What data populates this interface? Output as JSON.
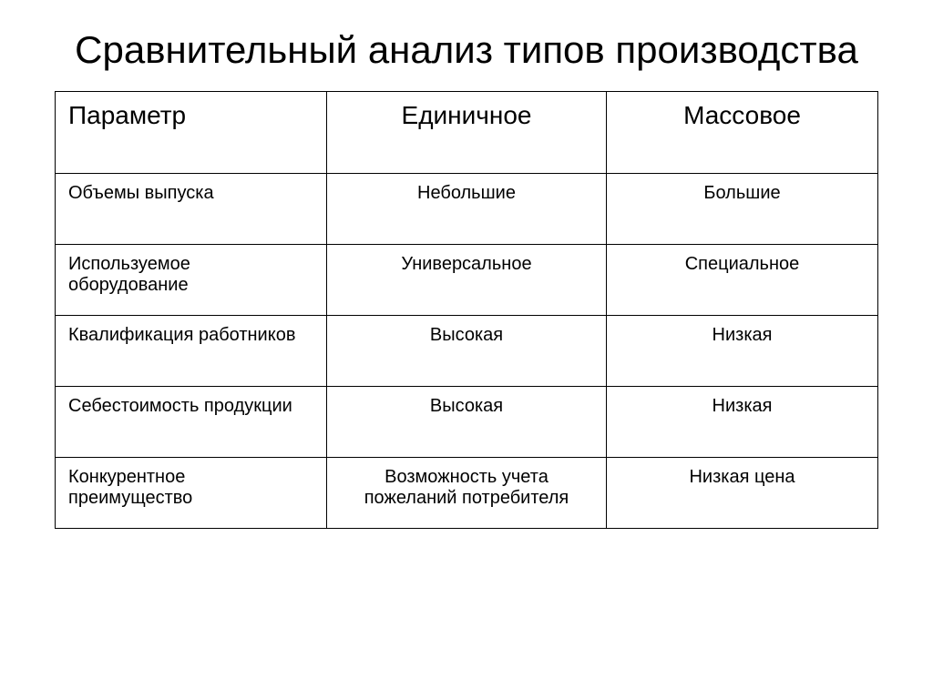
{
  "title": "Сравнительный анализ типов производства",
  "table": {
    "columns": [
      "Параметр",
      "Единичное",
      "Массовое"
    ],
    "rows": [
      [
        "Объемы выпуска",
        "Небольшие",
        "Большие"
      ],
      [
        "Используемое оборудование",
        "Универсальное",
        "Специальное"
      ],
      [
        "Квалификация работников",
        "Высокая",
        "Низкая"
      ],
      [
        "Себестоимость продукции",
        "Высокая",
        "Низкая"
      ],
      [
        "Конкурентное преимущество",
        "Возможность учета пожеланий потребителя",
        "Низкая цена"
      ]
    ],
    "header_fontsize": 28,
    "cell_fontsize": 20,
    "border_color": "#000000",
    "background_color": "#ffffff",
    "text_color": "#000000",
    "column_widths": [
      "33%",
      "34%",
      "33%"
    ],
    "column_alignments": [
      "left",
      "center",
      "center"
    ]
  },
  "title_fontsize": 42,
  "font_family": "Arial"
}
